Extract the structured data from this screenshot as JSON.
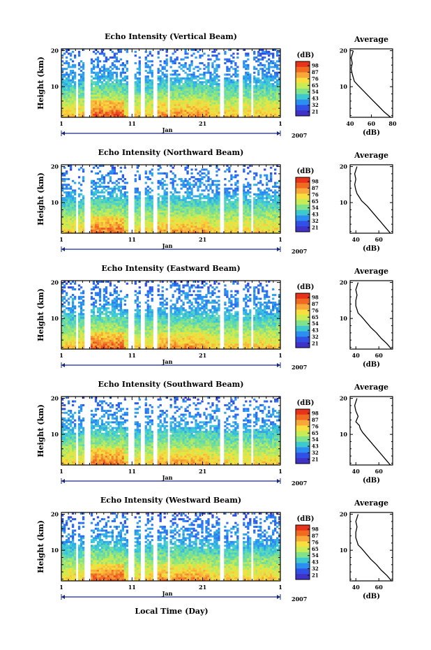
{
  "figure": {
    "xlabel": "Local Time (Day)",
    "month_label": "Jan",
    "year_label": "2007",
    "ylabel": "Height (km)",
    "colorbar_unit": "(dB)",
    "colorbar_ticks": [
      "98",
      "87",
      "76",
      "65",
      "54",
      "43",
      "32",
      "21"
    ],
    "colorbar_colors": [
      "#e8321a",
      "#f06a22",
      "#f8a73a",
      "#f7df3f",
      "#c8ec55",
      "#7fe28c",
      "#3ec8cf",
      "#2c8ef0",
      "#3050e6",
      "#4032c6"
    ]
  },
  "chart_data": [
    {
      "type": "heatmap",
      "title": "Echo Intensity (Vertical Beam)",
      "ylabel": "Height (km)",
      "xlabel": "",
      "xlim": [
        1,
        32
      ],
      "ylim": [
        1.5,
        20.5
      ],
      "x_ticks": [
        "1",
        "11",
        "21",
        "1"
      ],
      "y_ticks": [
        "10",
        "20"
      ],
      "colorbar": {
        "unit": "(dB)",
        "ticks": [
          "98",
          "87",
          "76",
          "65",
          "54",
          "43",
          "32",
          "21"
        ]
      },
      "average_profile": {
        "title": "Average",
        "xlabel": "(dB)",
        "x_ticks": [
          "40",
          "60",
          "80"
        ],
        "xlim": [
          40,
          80
        ],
        "heights": [
          1.5,
          3,
          4.5,
          6,
          7.5,
          9,
          10.5,
          11.5,
          12.5,
          13.5,
          15,
          16.5,
          18,
          19,
          20
        ],
        "values": [
          78,
          72,
          67,
          62,
          57,
          52,
          47,
          44,
          43,
          42,
          41,
          42,
          41,
          42,
          43
        ]
      }
    },
    {
      "type": "heatmap",
      "title": "Echo Intensity (Northward Beam)",
      "ylabel": "Height (km)",
      "xlabel": "",
      "xlim": [
        1,
        32
      ],
      "ylim": [
        1.5,
        20.5
      ],
      "x_ticks": [
        "1",
        "11",
        "21",
        "1"
      ],
      "y_ticks": [
        "10",
        "20"
      ],
      "colorbar": {
        "unit": "(dB)",
        "ticks": [
          "98",
          "87",
          "76",
          "65",
          "54",
          "43",
          "32",
          "21"
        ]
      },
      "average_profile": {
        "title": "Average",
        "xlabel": "(dB)",
        "x_ticks": [
          "40",
          "60"
        ],
        "xlim": [
          35,
          72
        ],
        "heights": [
          1.5,
          3,
          4.5,
          6,
          7.5,
          9,
          10.5,
          11.5,
          12.5,
          13.5,
          15,
          16.5,
          18,
          19,
          20
        ],
        "values": [
          70,
          66,
          62,
          58,
          54,
          50,
          45,
          43,
          41,
          40,
          39,
          40,
          39,
          40,
          41
        ]
      }
    },
    {
      "type": "heatmap",
      "title": "Echo Intensity (Eastward Beam)",
      "ylabel": "Height (km)",
      "xlabel": "",
      "xlim": [
        1,
        32
      ],
      "ylim": [
        1.5,
        20.5
      ],
      "x_ticks": [
        "1",
        "11",
        "21",
        "1"
      ],
      "y_ticks": [
        "10",
        "20"
      ],
      "colorbar": {
        "unit": "(dB)",
        "ticks": [
          "98",
          "87",
          "76",
          "65",
          "54",
          "43",
          "32",
          "21"
        ]
      },
      "average_profile": {
        "title": "Average",
        "xlabel": "(dB)",
        "x_ticks": [
          "40",
          "60"
        ],
        "xlim": [
          35,
          72
        ],
        "heights": [
          1.5,
          3,
          4.5,
          6,
          7.5,
          9,
          10.5,
          11.5,
          12.5,
          13.5,
          15,
          16.5,
          18,
          19,
          20
        ],
        "values": [
          71,
          67,
          62,
          58,
          53,
          49,
          45,
          42,
          41,
          40,
          40,
          41,
          40,
          41,
          42
        ]
      }
    },
    {
      "type": "heatmap",
      "title": "Echo Intensity (Southward Beam)",
      "ylabel": "Height (km)",
      "xlabel": "",
      "xlim": [
        1,
        32
      ],
      "ylim": [
        1.5,
        20.5
      ],
      "x_ticks": [
        "1",
        "11",
        "21",
        "1"
      ],
      "y_ticks": [
        "10",
        "20"
      ],
      "colorbar": {
        "unit": "(dB)",
        "ticks": [
          "98",
          "87",
          "76",
          "65",
          "54",
          "43",
          "32",
          "21"
        ]
      },
      "average_profile": {
        "title": "Average",
        "xlabel": "(dB)",
        "x_ticks": [
          "40",
          "60"
        ],
        "xlim": [
          35,
          72
        ],
        "heights": [
          1.5,
          3,
          4.5,
          6,
          7.5,
          9,
          10.5,
          11.5,
          12.5,
          13.5,
          15,
          16.5,
          18,
          19,
          20
        ],
        "values": [
          70,
          66,
          62,
          58,
          54,
          50,
          46,
          44,
          43,
          40,
          42,
          40,
          39,
          40,
          41
        ]
      }
    },
    {
      "type": "heatmap",
      "title": "Echo Intensity (Westward Beam)",
      "ylabel": "Height (km)",
      "xlabel": "Local Time (Day)",
      "xlim": [
        1,
        32
      ],
      "ylim": [
        1.5,
        20.5
      ],
      "x_ticks": [
        "1",
        "11",
        "21",
        "1"
      ],
      "y_ticks": [
        "10",
        "20"
      ],
      "colorbar": {
        "unit": "(dB)",
        "ticks": [
          "98",
          "87",
          "76",
          "65",
          "54",
          "43",
          "32",
          "21"
        ]
      },
      "average_profile": {
        "title": "Average",
        "xlabel": "(dB)",
        "x_ticks": [
          "40",
          "60"
        ],
        "xlim": [
          35,
          72
        ],
        "heights": [
          1.5,
          3,
          4.5,
          6,
          7.5,
          9,
          10.5,
          11.5,
          12.5,
          13.5,
          15,
          16.5,
          18,
          19,
          20
        ],
        "values": [
          71,
          67,
          62,
          58,
          53,
          49,
          45,
          42,
          41,
          40,
          40,
          41,
          40,
          41,
          42
        ]
      }
    }
  ]
}
